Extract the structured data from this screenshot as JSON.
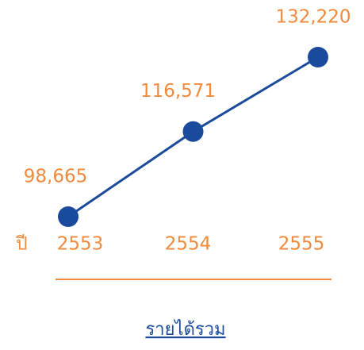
{
  "chart_data": {
    "type": "line",
    "title": "รายได้รวม",
    "xlabel": "ปี",
    "categories": [
      "2553",
      "2554",
      "2555"
    ],
    "values": [
      98665,
      116571,
      132220
    ],
    "value_labels": [
      "98,665",
      "116,571",
      "132,220"
    ],
    "color": "#1a4a9c",
    "label_color": "#f08a3c"
  }
}
